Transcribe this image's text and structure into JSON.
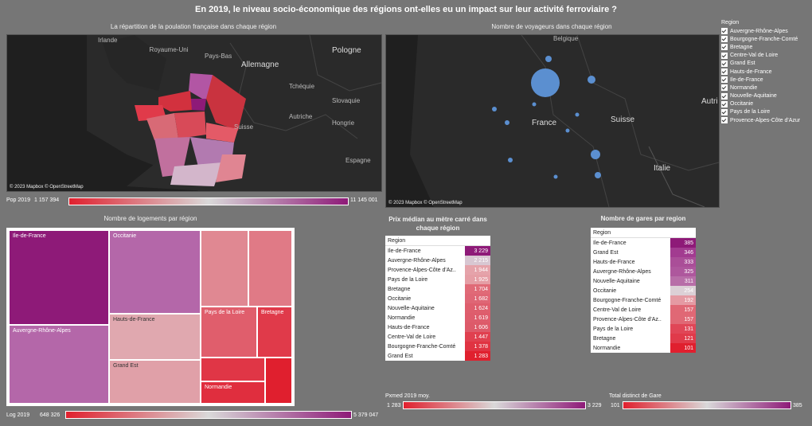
{
  "dashboard": {
    "title": "En 2019, le niveau socio-économique des régions ont-elles eu un impact sur leur activité ferroviaire ?"
  },
  "map_population": {
    "title": "La répartition de la poulation française dans chaque région",
    "labels": [
      "Irlande",
      "Royaume-Uni",
      "Pays-Bas",
      "Allemagne",
      "Pologne",
      "Tchéquie",
      "Slovaquie",
      "Autriche",
      "Hongrie",
      "Suisse",
      "Espagne"
    ],
    "credit": "© 2023 Mapbox © OpenStreetMap",
    "legend": {
      "label": "Pop 2019",
      "min": "1 157 394",
      "max": "11 145 001"
    }
  },
  "map_voyageurs": {
    "title": "Nombre de voyageurs dans chaque région",
    "labels": [
      "Belgique",
      "France",
      "Suisse",
      "Italie",
      "Autri"
    ],
    "credit": "© 2023 Mapbox © OpenStreetMap"
  },
  "region_filter": {
    "title": "Region",
    "items": [
      "Auvergne-Rhône-Alpes",
      "Bourgogne-Franche-Comté",
      "Bretagne",
      "Centre-Val de Loire",
      "Grand Est",
      "Hauts-de-France",
      "Ile-de-France",
      "Normandie",
      "Nouvelle-Aquitaine",
      "Occitanie",
      "Pays de la Loire",
      "Provence-Alpes-Côte d'Azur"
    ]
  },
  "treemap": {
    "title": "Nombre de logements par région",
    "labels": [
      "Ile-de-France",
      "Occitanie",
      "Auvergne-Rhône-Alpes",
      "Hauts-de-France",
      "Pays de la Loire",
      "Bretagne",
      "Grand Est",
      "Normandie"
    ],
    "legend": {
      "label": "Log 2019",
      "min": "648 326",
      "max": "5 379 047"
    }
  },
  "prix_table": {
    "title": "Prix médian au mètre carré dans chaque région",
    "header": "Region",
    "rows": [
      {
        "region": "Ile-de-France",
        "value": "3 229",
        "color": "#8e1a78"
      },
      {
        "region": "Auvergne-Rhône-Alpes",
        "value": "2 215",
        "color": "#d8c7d2"
      },
      {
        "region": "Provence-Alpes-Côte d'Az..",
        "value": "1 944",
        "color": "#e5a3aa"
      },
      {
        "region": "Pays de la Loire",
        "value": "1 925",
        "color": "#e59ea5"
      },
      {
        "region": "Bretagne",
        "value": "1 704",
        "color": "#e06a77"
      },
      {
        "region": "Occitanie",
        "value": "1 682",
        "color": "#df6675"
      },
      {
        "region": "Nouvelle-Aquitaine",
        "value": "1 624",
        "color": "#de5e6d"
      },
      {
        "region": "Normandie",
        "value": "1 619",
        "color": "#de5c6c"
      },
      {
        "region": "Hauts-de-France",
        "value": "1 606",
        "color": "#dd5a69"
      },
      {
        "region": "Centre-Val de Loire",
        "value": "1 447",
        "color": "#e0404f"
      },
      {
        "region": "Bourgogne-Franche-Comté",
        "value": "1 378",
        "color": "#e03342"
      },
      {
        "region": "Grand Est",
        "value": "1 283",
        "color": "#e0202e"
      }
    ],
    "legend": {
      "label": "Pxmed 2019 moy.",
      "min": "1 283",
      "max": "3 229"
    }
  },
  "gares_table": {
    "title": "Nombre de gares par region",
    "header": "Region",
    "rows": [
      {
        "region": "Ile-de-France",
        "value": "385",
        "color": "#8e1a78"
      },
      {
        "region": "Grand Est",
        "value": "346",
        "color": "#a23b90"
      },
      {
        "region": "Hauts-de-France",
        "value": "333",
        "color": "#aa4e98"
      },
      {
        "region": "Auvergne-Rhône-Alpes",
        "value": "325",
        "color": "#ae579d"
      },
      {
        "region": "Nouvelle-Aquitaine",
        "value": "311",
        "color": "#b86ea8"
      },
      {
        "region": "Occitanie",
        "value": "254",
        "color": "#dcd0d6"
      },
      {
        "region": "Bourgogne-Franche-Comté",
        "value": "192",
        "color": "#e59aa3"
      },
      {
        "region": "Centre-Val de Loire",
        "value": "157",
        "color": "#e06875"
      },
      {
        "region": "Provence-Alpes-Côte d'Az..",
        "value": "157",
        "color": "#e06875"
      },
      {
        "region": "Pays de la Loire",
        "value": "131",
        "color": "#e04657"
      },
      {
        "region": "Bretagne",
        "value": "121",
        "color": "#e03a4a"
      },
      {
        "region": "Normandie",
        "value": "101",
        "color": "#e01f2e"
      }
    ],
    "legend": {
      "label": "Total distinct de Gare",
      "min": "101",
      "max": "385"
    }
  },
  "colors": {
    "gradient_low": "#e0202e",
    "gradient_mid": "#d9d9d9",
    "gradient_high": "#8e1a78",
    "bubble": "#5b8fd0"
  }
}
